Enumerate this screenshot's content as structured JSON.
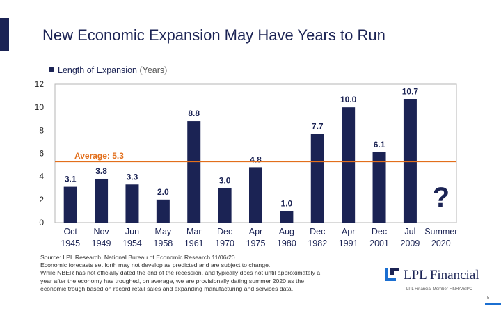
{
  "title": "New Economic Expansion May Have Years to Run",
  "legend": {
    "label": "Length of Expansion",
    "units": "(Years)"
  },
  "chart_data": {
    "type": "bar",
    "categories": [
      [
        "Oct",
        "1945"
      ],
      [
        "Nov",
        "1949"
      ],
      [
        "Jun",
        "1954"
      ],
      [
        "May",
        "1958"
      ],
      [
        "Mar",
        "1961"
      ],
      [
        "Dec",
        "1970"
      ],
      [
        "Apr",
        "1975"
      ],
      [
        "Aug",
        "1980"
      ],
      [
        "Dec",
        "1982"
      ],
      [
        "Apr",
        "1991"
      ],
      [
        "Dec",
        "2001"
      ],
      [
        "Jul",
        "2009"
      ],
      [
        "Summer",
        "2020"
      ]
    ],
    "series": [
      {
        "name": "Length of Expansion (Years)",
        "values": [
          3.1,
          3.8,
          3.3,
          2.0,
          8.8,
          3.0,
          4.8,
          1.0,
          7.7,
          10.0,
          6.1,
          10.7,
          null
        ]
      }
    ],
    "value_labels": [
      "3.1",
      "3.8",
      "3.3",
      "2.0",
      "8.8",
      "3.0",
      "4.8",
      "1.0",
      "7.7",
      "10.0",
      "6.1",
      "10.7",
      "?"
    ],
    "average": {
      "value": 5.3,
      "label": "Average: 5.3",
      "color": "#e26f1c"
    },
    "ylim": [
      0,
      12
    ],
    "yticks": [
      0,
      2,
      4,
      6,
      8,
      10,
      12
    ],
    "grid": false,
    "bar_color": "#1b2354"
  },
  "source_lines": [
    "Source: LPL Research, National Bureau of Economic Research   11/06/20",
    "Economic forecasts set forth may not develop as predicted and are subject to change.",
    "While NBER has not officially dated the end of the recession, and typically does not until approximately a",
    "year after the economy has troughed, on average, we are provisionally dating summer 2020 as the",
    "economic trough based on record retail sales and expanding manufacturing and services data."
  ],
  "logo_text": "LPL Financial",
  "member_text": "LPL Financial  Member FINRA/SIPC",
  "page_number": "5",
  "colors": {
    "navy": "#1b2354",
    "orange": "#e26f1c",
    "blue_accent": "#1b6fd1"
  }
}
